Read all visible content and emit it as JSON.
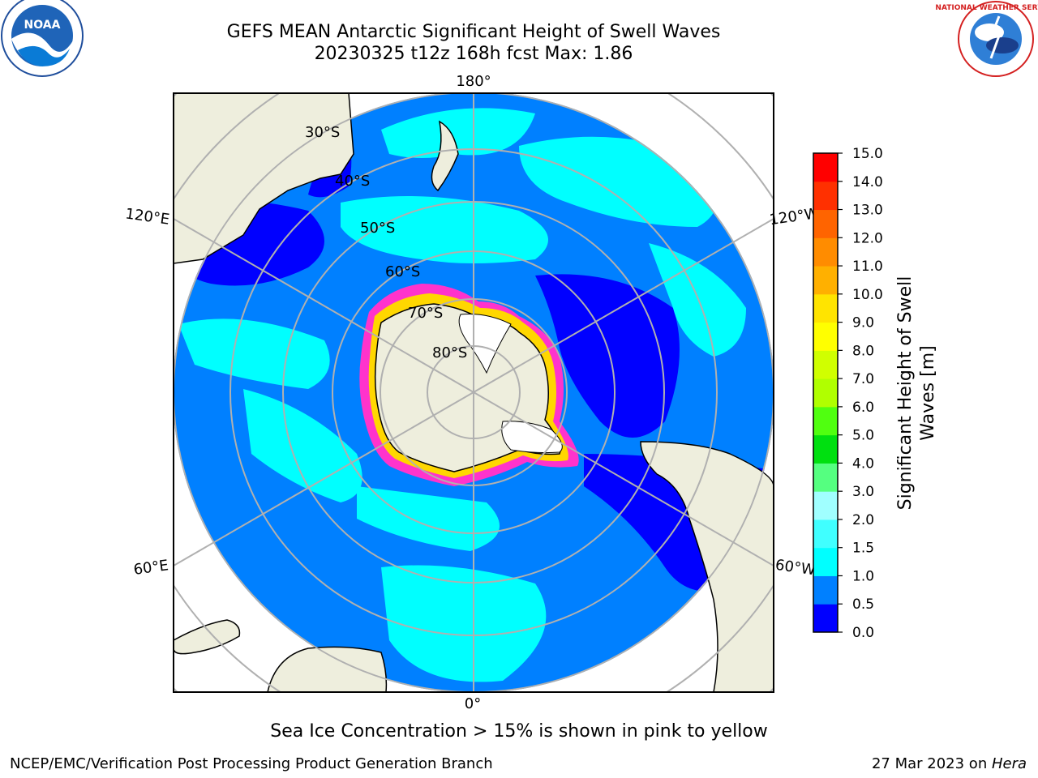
{
  "header": {
    "title_line1": "GEFS MEAN Antarctic Significant Height of Swell Waves",
    "title_line2": "20230325 t12z 168h fcst   Max: 1.86"
  },
  "logos": {
    "left": "noara-logo",
    "left_text": "NOAA",
    "right": "nws-logo",
    "right_text": "NATIONAL WEATHER SERVICE"
  },
  "map": {
    "projection": "south-polar-stereographic",
    "longitude_labels": [
      "180°",
      "120°E",
      "120°W",
      "60°E",
      "60°W",
      "0°"
    ],
    "latitude_labels": [
      "30°S",
      "40°S",
      "50°S",
      "60°S",
      "70°S",
      "80°S"
    ],
    "colors": {
      "land": "#eeeedd",
      "band_0_05": "#0000ff",
      "band_05_1": "#0080ff",
      "band_1_15": "#00ffff",
      "band_15_2": "#40ffff",
      "ice_pink": "#ff33cc",
      "ice_yellow": "#ffd700",
      "grid": "#b0b0b0"
    }
  },
  "colorbar": {
    "label": "Significant Height of Swell Waves [m]",
    "ticks": [
      "0.0",
      "0.5",
      "1.0",
      "1.5",
      "2.0",
      "3.0",
      "4.0",
      "5.0",
      "6.0",
      "7.0",
      "8.0",
      "9.0",
      "10.0",
      "11.0",
      "12.0",
      "13.0",
      "14.0",
      "15.0"
    ],
    "colors": [
      "#0000ff",
      "#0080ff",
      "#00ffff",
      "#40ffff",
      "#a0ffff",
      "#55ff80",
      "#00e010",
      "#50ff10",
      "#b0ff00",
      "#d0ff00",
      "#ffff00",
      "#ffe400",
      "#ffb000",
      "#ff8c00",
      "#ff6400",
      "#ff3000",
      "#ff0000"
    ]
  },
  "caption": "Sea Ice Concentration > 15% is shown in pink to yellow",
  "footer": {
    "left": "NCEP/EMC/Verification Post Processing Product Generation Branch",
    "right_prefix": "27 Mar 2023 on ",
    "right_host": "Hera"
  }
}
